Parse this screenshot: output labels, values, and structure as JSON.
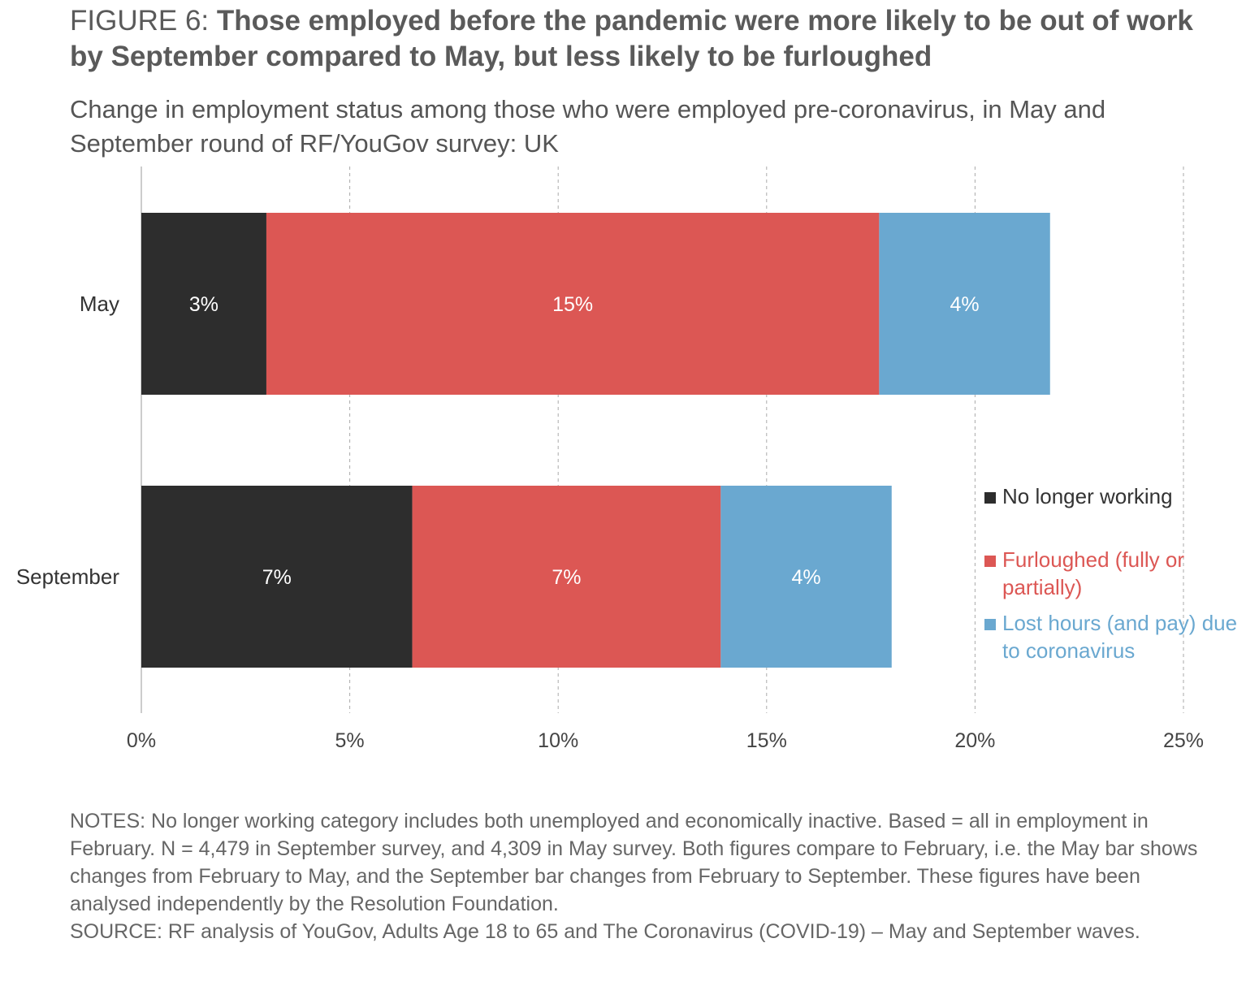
{
  "figure_label": "FIGURE 6:",
  "title": "Those employed before the pandemic were more likely to be out of work by September compared to May, but less likely to be furloughed",
  "subtitle": "Change in employment status among those who were employed pre-coronavirus, in May and September round of RF/YouGov survey: UK",
  "notes": "NOTES: No longer working category includes both unemployed and economically inactive. Based = all in employment in February. N = 4,479 in September survey, and 4,309 in May survey. Both figures compare to February, i.e. the May bar shows changes from February to May, and the September bar changes from February to September. These figures have been analysed independently by the Resolution Foundation.",
  "source": "SOURCE: RF analysis of YouGov, Adults Age 18 to 65 and The Coronavirus (COVID-19) – May and September waves.",
  "chart_data": {
    "type": "bar",
    "orientation": "horizontal",
    "stacked": true,
    "categories": [
      "May",
      "September"
    ],
    "series": [
      {
        "name": "No longer working",
        "color": "#2d2d2d",
        "values": [
          3.0,
          6.5
        ],
        "labels": [
          "3%",
          "7%"
        ]
      },
      {
        "name": "Furloughed (fully or partially)",
        "color": "#dc5754",
        "values": [
          14.7,
          7.4
        ],
        "labels": [
          "15%",
          "7%"
        ]
      },
      {
        "name": "Lost hours (and pay) due to coronavirus",
        "color": "#6aa8d0",
        "values": [
          4.1,
          4.1
        ],
        "labels": [
          "4%",
          "4%"
        ]
      }
    ],
    "xlim": [
      0,
      25
    ],
    "xticks": [
      "0%",
      "5%",
      "10%",
      "15%",
      "20%",
      "25%"
    ],
    "grid": "vertical dashed",
    "legend": "right"
  }
}
